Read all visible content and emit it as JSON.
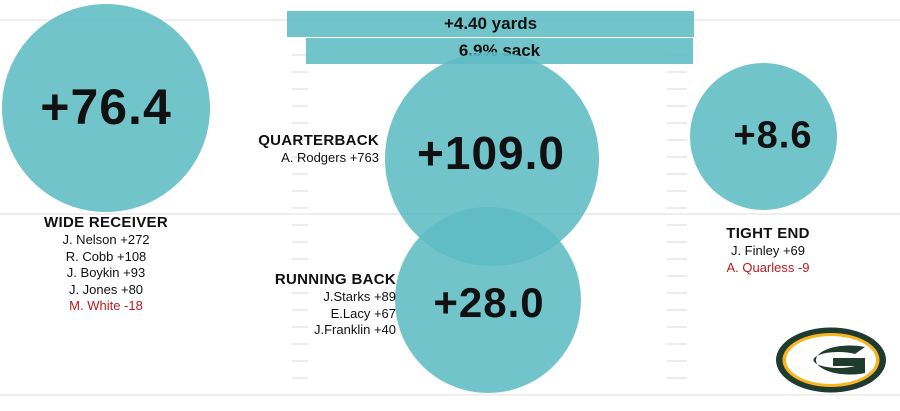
{
  "colors": {
    "bubble": "#5fbcc4",
    "negative": "#c0181d",
    "logo_green": "#1f3a2e",
    "logo_gold": "#f7b51e"
  },
  "chart_data": {
    "type": "bubble",
    "legend": "none",
    "grid": false,
    "bars": [
      {
        "label": "+4.40 yards"
      },
      {
        "label": "6.9% sack"
      }
    ],
    "positions": [
      {
        "key": "wr",
        "title": "WIDE RECEIVER",
        "value": 76.4,
        "value_label": "+76.4",
        "players": [
          {
            "text": "J. Nelson +272",
            "value": 272
          },
          {
            "text": "R. Cobb +108",
            "value": 108
          },
          {
            "text": "J. Boykin +93",
            "value": 93
          },
          {
            "text": "J. Jones +80",
            "value": 80
          },
          {
            "text": "M. White -18",
            "value": -18
          }
        ]
      },
      {
        "key": "qb",
        "title": "QUARTERBACK",
        "value": 109.0,
        "value_label": "+109.0",
        "players": [
          {
            "text": "A. Rodgers +763",
            "value": 763
          }
        ]
      },
      {
        "key": "rb",
        "title": "RUNNING BACK",
        "value": 28.0,
        "value_label": "+28.0",
        "players": [
          {
            "text": "J.Starks +89",
            "value": 89
          },
          {
            "text": "E.Lacy +67",
            "value": 67
          },
          {
            "text": "J.Franklin +40",
            "value": 40
          }
        ]
      },
      {
        "key": "te",
        "title": "TIGHT END",
        "value": 8.6,
        "value_label": "+8.6",
        "players": [
          {
            "text": "J. Finley +69",
            "value": 69
          },
          {
            "text": "A. Quarless -9",
            "value": -9
          }
        ]
      }
    ]
  },
  "logo": {
    "icon": "packers-g-logo-icon"
  }
}
